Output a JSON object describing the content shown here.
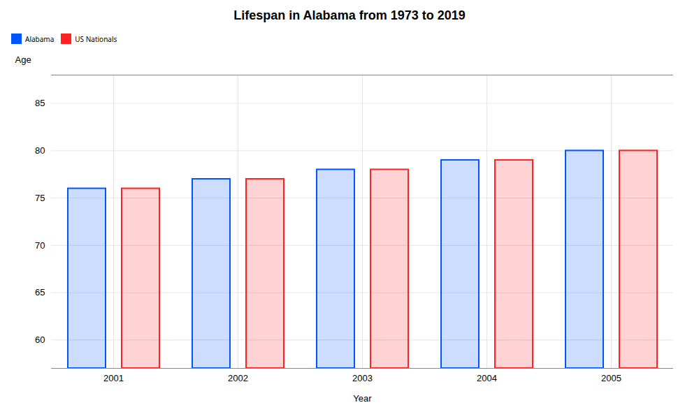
{
  "chart_data": {
    "type": "bar",
    "title": "Lifespan in Alabama from 1973 to 2019",
    "xlabel": "Year",
    "ylabel": "Age",
    "categories": [
      "2001",
      "2002",
      "2003",
      "2004",
      "2005"
    ],
    "series": [
      {
        "name": "Alabama",
        "color": "#0055ff",
        "values": [
          76,
          77,
          78,
          79,
          80
        ]
      },
      {
        "name": "US Nationals",
        "color": "#ff2222",
        "values": [
          76,
          77,
          78,
          79,
          80
        ]
      }
    ],
    "ylim": [
      57,
      88
    ],
    "yticks": [
      60,
      65,
      70,
      75,
      80,
      85
    ],
    "grid": true,
    "legend": "top"
  }
}
